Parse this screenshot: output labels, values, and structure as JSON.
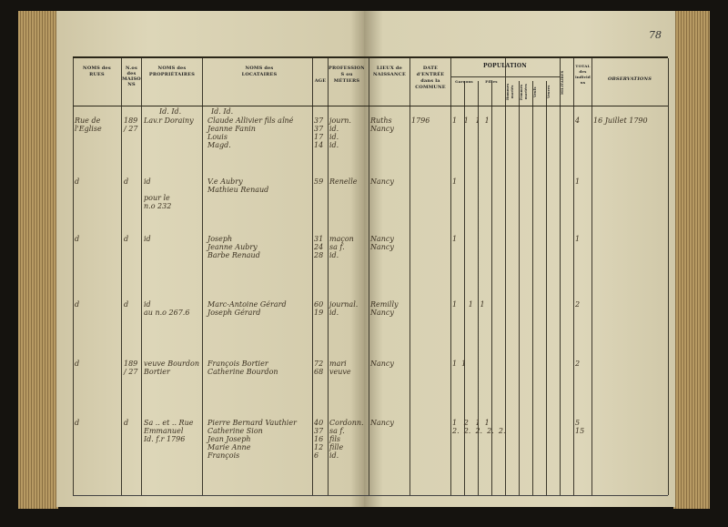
{
  "page_number": "78",
  "left_headers": {
    "rues": "NOMS des RUES",
    "maisons": "N.os des MAISONS",
    "proprietaires": "NOMS des PROPRIÉTAIRES",
    "locataires": "NOMS des LOCATAIRES",
    "age": "AGE",
    "professions": "PROFESSIONS ou MÉTIERS"
  },
  "right_headers": {
    "lieux": "LIEUX de NAISSANCE",
    "date": "DATE d'ENTRÉE dans la COMMUNE",
    "population": "POPULATION",
    "garcons": "Garçons",
    "filles": "Filles",
    "hommes": "Hommes mariés",
    "femmes": "Femmes mariées",
    "veufs": "Veufs",
    "veuves": "Veuves",
    "militaires": "MILITAIRES",
    "total": "TOTAL des individus",
    "observations": "OBSERVATIONS"
  },
  "ditto_marks": {
    "proprietaires": "Id. Id.",
    "locataires": "Id. Id."
  },
  "rows": [
    {
      "rue": "Rue de l'Eglise",
      "maison": "189 / 27",
      "proprietaire": "Lav.r Dorainy",
      "locataires": "Claude Allivier fils aîné\nJeanne Fanin\nLouis\nMagd.",
      "ages": "37\n37\n17\n14",
      "professions": "journ.\nid.\nid.\nid.",
      "lieu": "Ruths\nNancy",
      "date": "1796",
      "pop": "1   1   1  1",
      "total": "4",
      "observation": "16 Juillet 1790"
    },
    {
      "rue": "d",
      "maison": "d",
      "proprietaire": "id\n\npour le\nn.o 232",
      "locataires": "V.e Aubry\nMathieu Renaud",
      "ages": "59",
      "professions": "Renelle",
      "lieu": "Nancy",
      "date": "",
      "pop": "1",
      "total": "1",
      "observation": ""
    },
    {
      "rue": "d",
      "maison": "d",
      "proprietaire": "id",
      "locataires": "Joseph\nJeanne Aubry\nBarbe Renaud",
      "ages": "31\n24\n28",
      "professions": "maçon\nsa f.\nid.",
      "lieu": "Nancy\nNancy",
      "date": "",
      "pop": "1",
      "total": "1",
      "observation": ""
    },
    {
      "rue": "d",
      "maison": "d",
      "proprietaire": "id\nau n.o 267.6",
      "locataires": "Marc-Antoine Gérard\nJoseph Gérard",
      "ages": "60\n19",
      "professions": "journal.\nid.",
      "lieu": "Remilly\nNancy",
      "date": "",
      "pop": "1     1   1",
      "total": "2",
      "observation": ""
    },
    {
      "rue": "d",
      "maison": "189 / 27",
      "proprietaire": "veuve Bourdon Bortier",
      "locataires": "François Bortier\nCatherine Bourdon",
      "ages": "72\n68",
      "professions": "mari\nveuve",
      "lieu": "Nancy",
      "date": "",
      "pop": "1  1",
      "total": "2",
      "observation": ""
    },
    {
      "rue": "d",
      "maison": "d",
      "proprietaire": "Sa .. et .. Rue Emmanuel\nId. f.r 1796",
      "locataires": "Pierre Bernard Vauthier\nCatherine Sion\nJean Joseph\nMarie Anne\nFrançois",
      "ages": "40\n37\n16\n12\n6",
      "professions": "Cordonn.\nsa f.\nfils\nfille\nid.",
      "lieu": "Nancy",
      "date": "",
      "pop": "1   2   1  1\n2.  2.  2.  2.  2.",
      "total": "5\n15",
      "observation": ""
    }
  ]
}
